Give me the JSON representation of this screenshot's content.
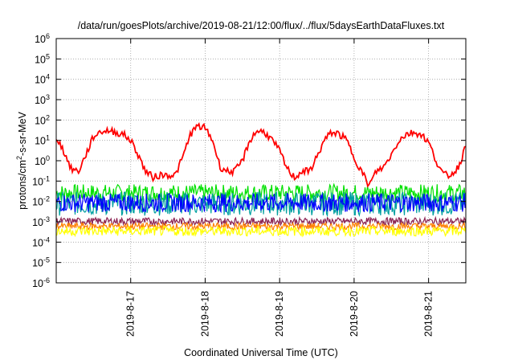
{
  "chart_data": {
    "type": "line",
    "title": "/data/run/goesPlots/archive/2019-08-21/12:00/flux/../flux/5daysEarthDataFluxes.txt",
    "xlabel": "Coordinated Universal Time (UTC)",
    "ylabel": {
      "prefix": "protons/cm",
      "sup": "2",
      "suffix": "-s-sr-MeV"
    },
    "xlim": [
      0,
      5.5
    ],
    "x_tick_values": [
      1,
      2,
      3,
      4,
      5
    ],
    "x_tick_labels": [
      "2019-8-17",
      "2019-8-18",
      "2019-8-19",
      "2019-8-20",
      "2019-8-21"
    ],
    "ylim": [
      1e-06,
      1000000.0
    ],
    "yscale": "log",
    "y_ticks": [
      {
        "base": "10",
        "exp": "-6"
      },
      {
        "base": "10",
        "exp": "-5"
      },
      {
        "base": "10",
        "exp": "-4"
      },
      {
        "base": "10",
        "exp": "-3"
      },
      {
        "base": "10",
        "exp": "-2"
      },
      {
        "base": "10",
        "exp": "-1"
      },
      {
        "base": "10",
        "exp": "0"
      },
      {
        "base": "10",
        "exp": "1"
      },
      {
        "base": "10",
        "exp": "2"
      },
      {
        "base": "10",
        "exp": "3"
      },
      {
        "base": "10",
        "exp": "4"
      },
      {
        "base": "10",
        "exp": "5"
      },
      {
        "base": "10",
        "exp": "6"
      }
    ],
    "grid": true,
    "grid_style": "dotted",
    "series": [
      {
        "color": "#ff0000",
        "x": [
          0,
          0.1,
          0.2,
          0.3,
          0.4,
          0.5,
          0.6,
          0.7,
          0.8,
          0.9,
          1,
          1.1,
          1.2,
          1.3,
          1.4,
          1.5,
          1.6,
          1.7,
          1.8,
          1.9,
          2,
          2.1,
          2.2,
          2.3,
          2.4,
          2.5,
          2.6,
          2.7,
          2.8,
          2.9,
          3,
          3.1,
          3.2,
          3.3,
          3.4,
          3.5,
          3.6,
          3.7,
          3.8,
          3.9,
          4,
          4.1,
          4.2,
          4.3,
          4.4,
          4.5,
          4.6,
          4.7,
          4.8,
          4.9,
          5,
          5.1,
          5.2,
          5.3,
          5.4,
          5.5
        ],
        "y": [
          15,
          3,
          0.4,
          0.3,
          2,
          15,
          28,
          30,
          25,
          20,
          10,
          2,
          0.3,
          0.15,
          0.2,
          0.2,
          0.2,
          1.5,
          20,
          50,
          40,
          10,
          0.5,
          0.3,
          0.3,
          1,
          10,
          30,
          25,
          10,
          3,
          0.4,
          0.15,
          0.3,
          0.3,
          1.5,
          10,
          25,
          20,
          10,
          1.5,
          0.3,
          0.06,
          0.3,
          0.5,
          2,
          10,
          20,
          25,
          20,
          8,
          1,
          0.2,
          0.2,
          0.5,
          5
        ]
      },
      {
        "color": "#00e000",
        "band": [
          0.01,
          0.07
        ]
      },
      {
        "color": "#00a0a0",
        "band": [
          0.002,
          0.03
        ]
      },
      {
        "color": "#0000ff",
        "band": [
          0.003,
          0.025
        ]
      },
      {
        "color": "#8b2252",
        "band": [
          0.0007,
          0.0016
        ]
      },
      {
        "color": "#ff8000",
        "band": [
          0.0004,
          0.0009
        ]
      },
      {
        "color": "#ffff00",
        "band": [
          0.0002,
          0.0006
        ]
      }
    ]
  }
}
